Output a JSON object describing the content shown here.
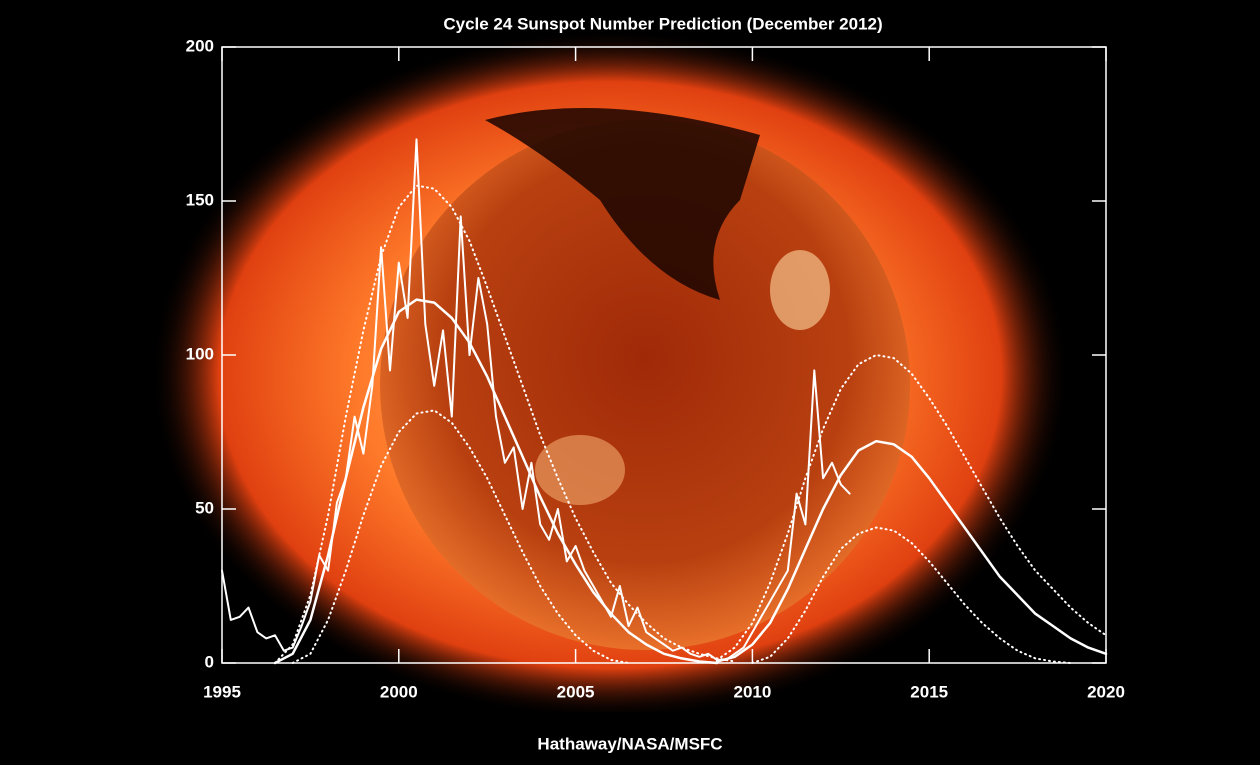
{
  "chart_data": {
    "type": "line",
    "title": "Cycle 24 Sunspot Number Prediction (December 2012)",
    "source": "Hathaway/NASA/MSFC",
    "xlim": [
      1995,
      2020
    ],
    "xticks": [
      1995,
      2000,
      2005,
      2010,
      2015,
      2020
    ],
    "ylim": [
      0,
      200
    ],
    "yticks": [
      0,
      50,
      100,
      150,
      200
    ],
    "grid": false,
    "series": [
      {
        "color": "#ffffff",
        "style": "solid",
        "width": 2,
        "x": [
          1995,
          1995.25,
          1995.5,
          1995.75,
          1996,
          1996.25,
          1996.5,
          1996.75,
          1997,
          1997.25,
          1997.5,
          1997.75,
          1998,
          1998.25,
          1998.5,
          1998.75,
          1999,
          1999.25,
          1999.5,
          1999.75,
          2000,
          2000.25,
          2000.5,
          2000.75,
          2001,
          2001.25,
          2001.5,
          2001.75,
          2002,
          2002.25,
          2002.5,
          2002.75,
          2003,
          2003.25,
          2003.5,
          2003.75,
          2004,
          2004.25,
          2004.5,
          2004.75,
          2005,
          2005.25,
          2005.5,
          2005.75,
          2006,
          2006.25,
          2006.5,
          2006.75,
          2007,
          2007.25,
          2007.5,
          2007.75,
          2008,
          2008.25,
          2008.5,
          2008.75,
          2009,
          2009.25,
          2009.5,
          2009.75,
          2010,
          2010.25,
          2010.5,
          2010.75,
          2011,
          2011.25,
          2011.5,
          2011.75,
          2012,
          2012.25,
          2012.5,
          2012.75
        ],
        "values": [
          30,
          14,
          15,
          18,
          10,
          8,
          9,
          4,
          5,
          12,
          20,
          35,
          30,
          52,
          60,
          80,
          68,
          90,
          135,
          95,
          130,
          112,
          170,
          110,
          90,
          108,
          80,
          145,
          100,
          125,
          110,
          80,
          65,
          70,
          50,
          65,
          45,
          40,
          50,
          33,
          38,
          30,
          25,
          20,
          15,
          25,
          12,
          18,
          10,
          8,
          6,
          4,
          5,
          3,
          2,
          3,
          1,
          1,
          3,
          5,
          10,
          15,
          20,
          25,
          30,
          55,
          45,
          95,
          60,
          65,
          58,
          55
        ]
      },
      {
        "color": "#ffffff",
        "style": "solid",
        "width": 2.5,
        "x": [
          1996.5,
          1997,
          1997.5,
          1998,
          1998.5,
          1999,
          1999.5,
          2000,
          2000.5,
          2001,
          2001.5,
          2002,
          2002.5,
          2003,
          2003.5,
          2004,
          2004.5,
          2005,
          2005.5,
          2006,
          2006.5,
          2007,
          2007.5,
          2008,
          2008.5,
          2009
        ],
        "values": [
          0,
          3,
          14,
          35,
          60,
          83,
          102,
          114,
          118,
          117,
          112,
          104,
          93,
          80,
          67,
          54,
          42,
          32,
          23,
          16,
          10,
          6,
          3,
          1.5,
          0.5,
          0
        ]
      },
      {
        "color": "#ffffff",
        "style": "dotted",
        "width": 2,
        "x": [
          1996.5,
          1997,
          1997.5,
          1998,
          1998.5,
          1999,
          1999.5,
          2000,
          2000.5,
          2001,
          2001.5,
          2002,
          2002.5,
          2003,
          2003.5,
          2004,
          2004.5,
          2005,
          2005.5,
          2006,
          2006.5,
          2007,
          2007.5,
          2008,
          2008.5,
          2009,
          2009.5
        ],
        "values": [
          0,
          6,
          22,
          48,
          80,
          108,
          132,
          148,
          155,
          154,
          148,
          137,
          122,
          106,
          90,
          74,
          60,
          47,
          36,
          26,
          19,
          13,
          8,
          5,
          3,
          1.5,
          0.5
        ]
      },
      {
        "color": "#ffffff",
        "style": "dotted",
        "width": 2,
        "x": [
          1997,
          1997.5,
          1998,
          1998.5,
          1999,
          1999.5,
          2000,
          2000.5,
          2001,
          2001.5,
          2002,
          2002.5,
          2003,
          2003.5,
          2004,
          2004.5,
          2005,
          2005.5,
          2006,
          2006.5
        ],
        "values": [
          0,
          3,
          14,
          30,
          48,
          64,
          75,
          81,
          82,
          78,
          70,
          60,
          48,
          36,
          25,
          16,
          9,
          4,
          1,
          0
        ]
      },
      {
        "color": "#ffffff",
        "style": "solid",
        "width": 2.5,
        "x": [
          2009,
          2009.5,
          2010,
          2010.5,
          2011,
          2011.5,
          2012,
          2012.5,
          2013,
          2013.5,
          2014,
          2014.5,
          2015,
          2015.5,
          2016,
          2016.5,
          2017,
          2017.5,
          2018,
          2018.5,
          2019,
          2019.5,
          2020
        ],
        "values": [
          0.5,
          2,
          6,
          13,
          24,
          37,
          50,
          61,
          69,
          72,
          71,
          67,
          60,
          52,
          44,
          36,
          28,
          22,
          16,
          12,
          8,
          5,
          3
        ]
      },
      {
        "color": "#ffffff",
        "style": "dotted",
        "width": 2,
        "x": [
          2009,
          2009.5,
          2010,
          2010.5,
          2011,
          2011.5,
          2012,
          2012.5,
          2013,
          2013.5,
          2014,
          2014.5,
          2015,
          2015.5,
          2016,
          2016.5,
          2017,
          2017.5,
          2018,
          2018.5,
          2019,
          2019.5,
          2020
        ],
        "values": [
          1,
          5,
          13,
          26,
          42,
          60,
          76,
          89,
          97,
          100,
          99,
          94,
          86,
          77,
          67,
          57,
          47,
          38,
          30,
          24,
          18,
          13,
          9
        ]
      },
      {
        "color": "#ffffff",
        "style": "dotted",
        "width": 2,
        "x": [
          2010,
          2010.5,
          2011,
          2011.5,
          2012,
          2012.5,
          2013,
          2013.5,
          2014,
          2014.5,
          2015,
          2015.5,
          2016,
          2016.5,
          2017,
          2017.5,
          2018,
          2018.5,
          2019
        ],
        "values": [
          0,
          2,
          8,
          17,
          28,
          37,
          42,
          44,
          43,
          39,
          33,
          26,
          19,
          13,
          8,
          4,
          1.5,
          0.5,
          0
        ]
      }
    ]
  }
}
